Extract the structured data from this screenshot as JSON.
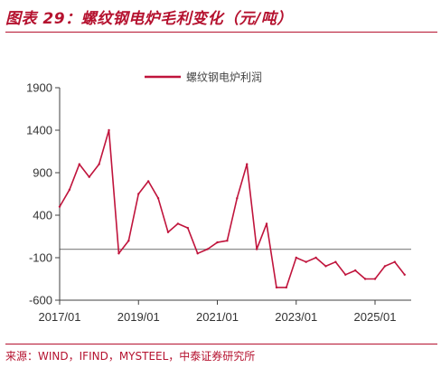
{
  "figure_title": "图表 29：螺纹钢电炉毛利变化（元/吨）",
  "source": "来源：WIND，IFIND，MYSTEEL，中泰证券研究所",
  "colors": {
    "series": "#c0143c",
    "reference": "#8c8c8c",
    "axis": "#404040",
    "accent": "#b5122f"
  },
  "chart_data": {
    "type": "line",
    "title": "图表 29：螺纹钢电炉毛利变化（元/吨）",
    "xlabel": "",
    "ylabel": "",
    "unit": "元/吨",
    "xlim": [
      "2017/01",
      "2025/12"
    ],
    "ylim": [
      -600,
      1900
    ],
    "yticks": [
      1900,
      1400,
      900,
      400,
      -100,
      -600
    ],
    "xticks": [
      "2017/01",
      "2019/01",
      "2021/01",
      "2023/01",
      "2025/01"
    ],
    "grid": false,
    "legend": "top-center",
    "reference_line": {
      "y": 0
    },
    "series": [
      {
        "name": "螺纹钢电炉利润",
        "x": [
          "2017/01",
          "2017/04",
          "2017/07",
          "2017/10",
          "2018/01",
          "2018/04",
          "2018/07",
          "2018/10",
          "2019/01",
          "2019/04",
          "2019/07",
          "2019/10",
          "2020/01",
          "2020/04",
          "2020/07",
          "2020/10",
          "2021/01",
          "2021/04",
          "2021/07",
          "2021/10",
          "2022/01",
          "2022/04",
          "2022/07",
          "2022/10",
          "2023/01",
          "2023/04",
          "2023/07",
          "2023/10",
          "2024/01",
          "2024/04",
          "2024/07",
          "2024/10",
          "2025/01",
          "2025/04",
          "2025/07",
          "2025/10"
        ],
        "values": [
          500,
          700,
          1000,
          850,
          1000,
          1400,
          -50,
          100,
          650,
          800,
          600,
          200,
          300,
          250,
          -50,
          0,
          80,
          100,
          600,
          1000,
          0,
          300,
          -450,
          -450,
          -100,
          -150,
          -100,
          -200,
          -150,
          -300,
          -250,
          -350,
          -350,
          -200,
          -150,
          -300
        ]
      }
    ]
  }
}
